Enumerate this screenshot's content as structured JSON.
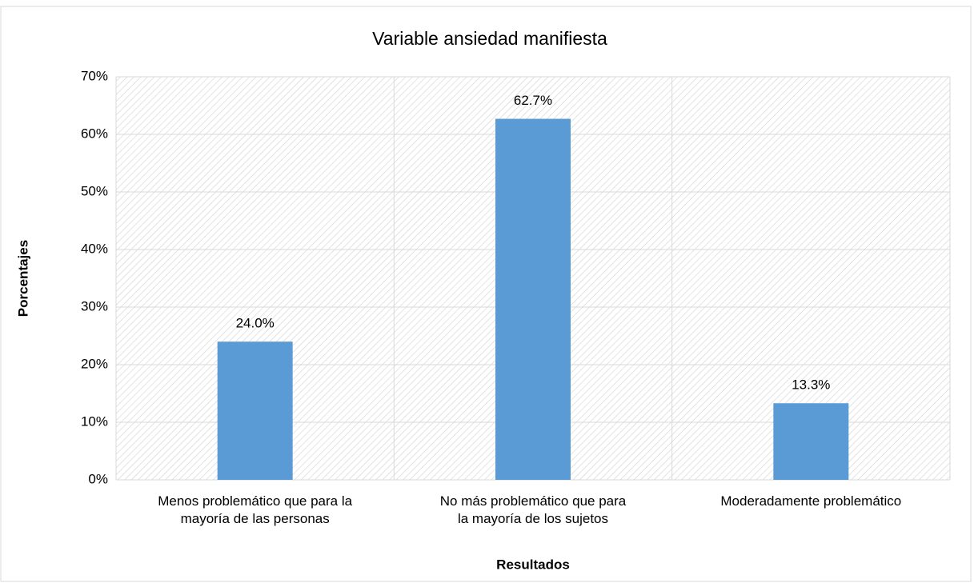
{
  "chart_data": {
    "type": "bar",
    "title": "Variable ansiedad manifiesta",
    "x_label": "Resultados",
    "y_label": "Porcentajes",
    "categories": [
      [
        "Menos problemático que para la",
        "mayoría de las personas"
      ],
      [
        "No más problemático que para",
        "la mayoría de los sujetos"
      ],
      [
        "Moderadamente problemático"
      ]
    ],
    "values": [
      24.0,
      62.7,
      13.3
    ],
    "value_labels": [
      "24.0%",
      "62.7%",
      "13.3%"
    ],
    "color": "#5b9bd5",
    "ylim": [
      0,
      70
    ],
    "yticks": [
      {
        "value": 0,
        "label": "0%"
      },
      {
        "value": 10,
        "label": "10%"
      },
      {
        "value": 20,
        "label": "20%"
      },
      {
        "value": 30,
        "label": "30%"
      },
      {
        "value": 40,
        "label": "40%"
      },
      {
        "value": 50,
        "label": "50%"
      },
      {
        "value": 60,
        "label": "60%"
      },
      {
        "value": 70,
        "label": "70%"
      }
    ],
    "grid": true
  }
}
